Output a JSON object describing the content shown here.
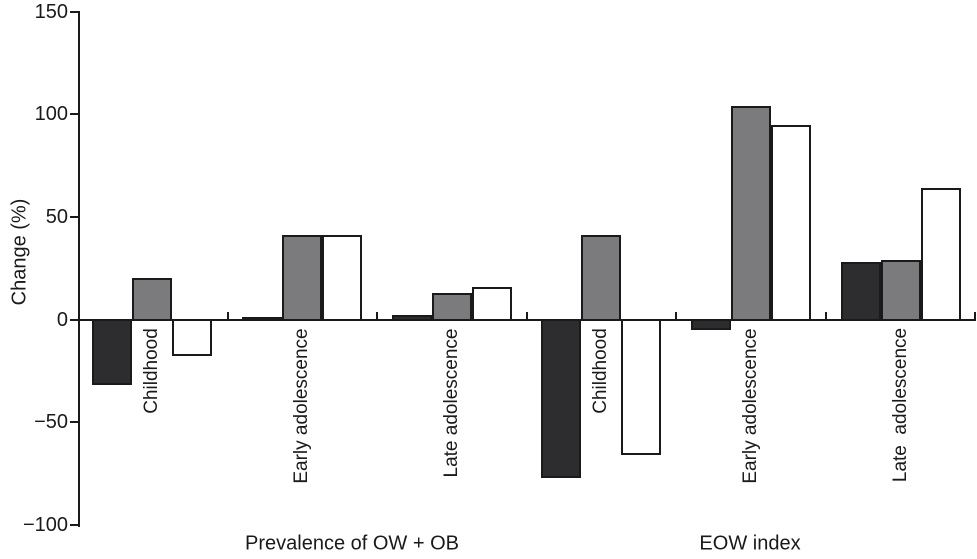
{
  "chart_data": {
    "type": "bar",
    "title": "",
    "ylabel": "Change (%)",
    "xlabel": "",
    "ylim": [
      -100,
      150
    ],
    "yticks": [
      150,
      100,
      50,
      0,
      -50,
      -100
    ],
    "grid": false,
    "legend_position": "none",
    "series": [
      {
        "name": "dark",
        "color": "#2d2d2f"
      },
      {
        "name": "gray",
        "color": "#7b7b7e"
      },
      {
        "name": "white",
        "color": "#ffffff"
      }
    ],
    "categories": [
      "Childhood",
      "Early adolescence",
      "Late adolescence",
      "Childhood",
      "Early adolescence",
      "Late  adolescence"
    ],
    "groups": [
      {
        "section": "Prevalence of OW + OB",
        "label": "Childhood",
        "values": [
          -32,
          20,
          -18
        ]
      },
      {
        "section": "Prevalence of OW + OB",
        "label": "Early adolescence",
        "values": [
          1,
          41,
          41
        ]
      },
      {
        "section": "Prevalence of OW + OB",
        "label": "Late adolescence",
        "values": [
          2,
          13,
          16
        ]
      },
      {
        "section": "EOW index",
        "label": "Childhood",
        "values": [
          -77,
          41,
          -66
        ]
      },
      {
        "section": "EOW index",
        "label": "Early adolescence",
        "values": [
          -5,
          104,
          95
        ]
      },
      {
        "section": "EOW index",
        "label": "Late  adolescence",
        "values": [
          28,
          29,
          64
        ]
      }
    ],
    "section_labels": [
      "Prevalence of OW + OB",
      "EOW index"
    ]
  }
}
